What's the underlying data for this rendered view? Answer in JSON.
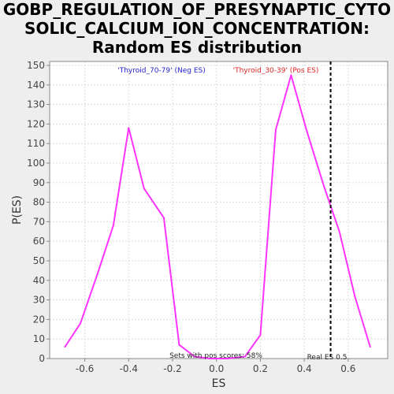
{
  "title_lines": [
    "GOBP_REGULATION_OF_PRESYNAPTIC_CYTO",
    "SOLIC_CALCIUM_ION_CONCENTRATION:",
    "Random ES distribution"
  ],
  "colors": {
    "background": "#eeeeee",
    "plot_background": "#ffffff",
    "line": "#ff33ff",
    "neg_label": "#2222cc",
    "pos_label": "#dd2222",
    "grid": "#dddddd",
    "marker": "#000000"
  },
  "chart_data": {
    "type": "line",
    "title": "GOBP_REGULATION_OF_PRESYNAPTIC_CYTOSOLIC_CALCIUM_ION_CONCENTRATION: Random ES distribution",
    "xlabel": "ES",
    "ylabel": "P(ES)",
    "xlim": [
      -0.76,
      0.78
    ],
    "ylim": [
      0,
      152
    ],
    "xticks": [
      -0.6,
      -0.4,
      -0.2,
      0.0,
      0.2,
      0.4,
      0.6
    ],
    "xtick_labels": [
      "-0.6",
      "-0.4",
      "-0.2",
      "0.0",
      "0.2",
      "0.4",
      "0.6"
    ],
    "yticks": [
      0,
      10,
      20,
      30,
      40,
      50,
      60,
      70,
      80,
      90,
      100,
      110,
      120,
      130,
      140,
      150
    ],
    "ytick_labels": [
      "0",
      "10",
      "20",
      "30",
      "40",
      "50",
      "60",
      "70",
      "80",
      "90",
      "100",
      "110",
      "120",
      "130",
      "140",
      "150"
    ],
    "grid": true,
    "series": [
      {
        "x": [
          -0.69,
          -0.62,
          -0.54,
          -0.47,
          -0.4,
          -0.33,
          -0.24,
          -0.17,
          -0.1,
          -0.03,
          0.05,
          0.13,
          0.2,
          0.27,
          0.34,
          0.41,
          0.49,
          0.56,
          0.63,
          0.7
        ],
        "values": [
          6,
          18,
          44,
          68,
          118,
          87,
          72,
          7,
          1,
          0,
          0,
          1,
          12,
          117,
          145,
          117,
          88,
          65,
          32,
          6
        ]
      }
    ],
    "annotations": {
      "neg_label": "'Thyroid_70-79' (Neg ES)",
      "pos_label": "'Thyroid_30-39' (Pos ES)",
      "pos_scores": "Sets with pos scores: 58%",
      "real_es_label": "Real ES 0.5",
      "real_es": 0.52
    }
  }
}
